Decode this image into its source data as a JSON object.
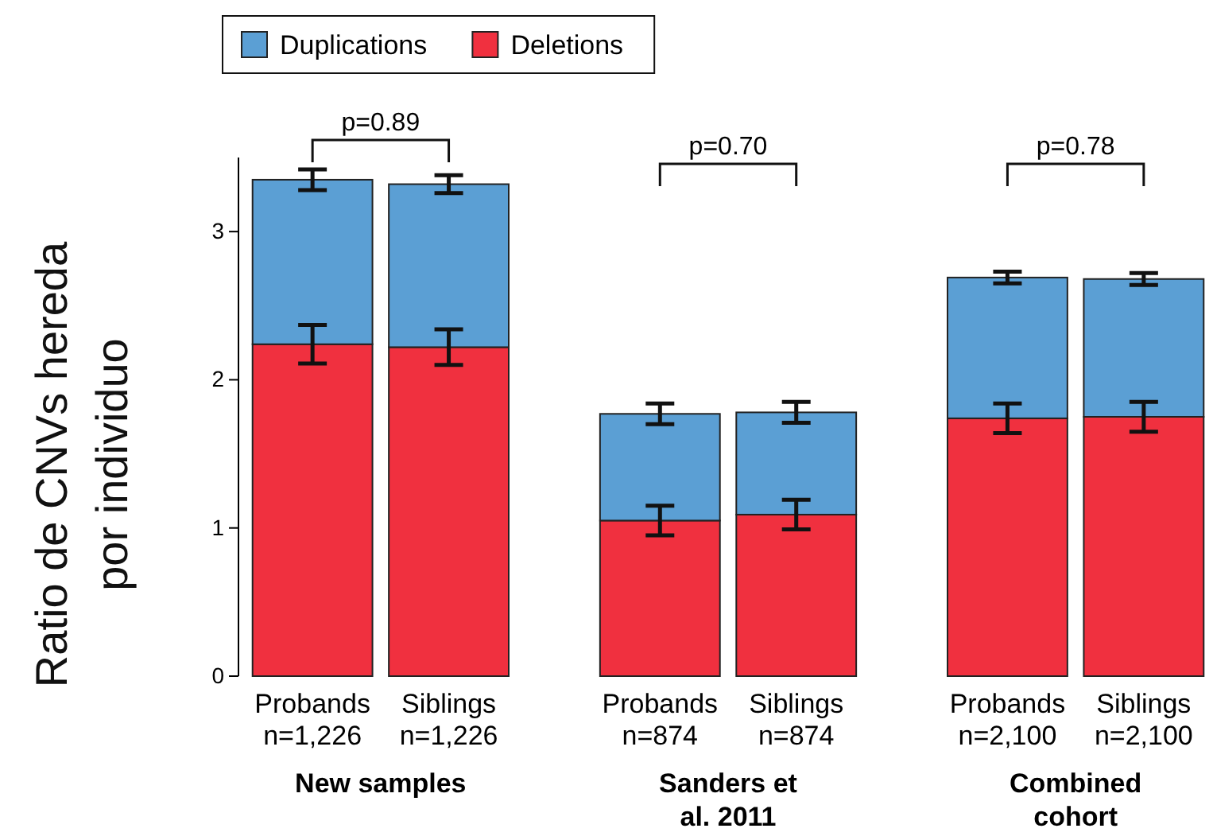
{
  "chart_data": {
    "type": "bar",
    "stacked": true,
    "ylabel": "Ratio de CNVs hereda\npor individuo",
    "categories": [
      "Probands\nn=1,226",
      "Siblings\nn=1,226",
      "Probands\nn=874",
      "Siblings\nn=874",
      "Probands\nn=2,100",
      "Siblings\nn=2,100"
    ],
    "series": [
      {
        "name": "Deletions",
        "color": "#f0303f",
        "values": [
          2.24,
          2.22,
          1.05,
          1.09,
          1.74,
          1.75
        ],
        "errors": [
          0.13,
          0.12,
          0.1,
          0.1,
          0.1,
          0.1
        ]
      },
      {
        "name": "Duplications",
        "color": "#5b9fd4",
        "values": [
          1.11,
          1.1,
          0.72,
          0.69,
          0.95,
          0.93
        ],
        "errors": [
          0.07,
          0.06,
          0.07,
          0.07,
          0.04,
          0.04
        ]
      }
    ],
    "ylim": [
      0,
      3.5
    ],
    "yticks": [
      0,
      1,
      2,
      3
    ],
    "grid": false,
    "legend": "top",
    "annotations": [
      "p=0.89",
      "p=0.70",
      "p=0.78",
      "New samples",
      "Sanders et al. 2011",
      "Combined cohort"
    ]
  }
}
